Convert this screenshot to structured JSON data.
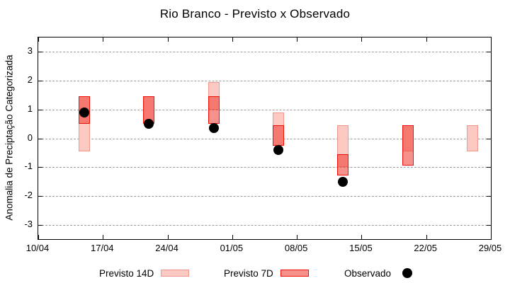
{
  "title": "Rio Branco - Previsto x Observado",
  "chart_data": {
    "type": "bar",
    "subtype": "floating-range-bars-with-scatter",
    "title": "Rio Branco - Previsto x Observado",
    "xlabel": "",
    "ylabel": "Anomalia de Preciptação Categorizada",
    "ylim": [
      -3.5,
      3.5
    ],
    "xlim_days": [
      0,
      49
    ],
    "grid": true,
    "legend_position": "bottom",
    "y_ticks": [
      {
        "value": 3,
        "label": "3"
      },
      {
        "value": 2,
        "label": "2"
      },
      {
        "value": 1,
        "label": "1"
      },
      {
        "value": 0,
        "label": "0"
      },
      {
        "value": -1,
        "label": "-1"
      },
      {
        "value": -2,
        "label": "-2"
      },
      {
        "value": -3,
        "label": "-3"
      }
    ],
    "x_ticks": [
      {
        "day": 0,
        "label": "10/04"
      },
      {
        "day": 7,
        "label": "17/04"
      },
      {
        "day": 14,
        "label": "24/04"
      },
      {
        "day": 21,
        "label": "01/05"
      },
      {
        "day": 28,
        "label": "08/05"
      },
      {
        "day": 35,
        "label": "15/05"
      },
      {
        "day": 42,
        "label": "22/05"
      },
      {
        "day": 49,
        "label": "29/05"
      }
    ],
    "series": [
      {
        "name": "Previsto 14D",
        "type": "range",
        "fill": "#fbc9c1",
        "border": "#f0978b",
        "points": [
          {
            "day": 5,
            "date": "15/04",
            "low": -0.45,
            "high": 1.45
          },
          {
            "day": 12,
            "date": "22/04",
            "low": 0.5,
            "high": 1.45
          },
          {
            "day": 19,
            "date": "29/04",
            "low": 1.0,
            "high": 1.95
          },
          {
            "day": 26,
            "date": "06/05",
            "low": -0.25,
            "high": 0.9
          },
          {
            "day": 33,
            "date": "13/05",
            "low": -1.0,
            "high": 0.45
          },
          {
            "day": 40,
            "date": "20/05",
            "low": -0.45,
            "high": 0.45
          },
          {
            "day": 47,
            "date": "27/05",
            "low": -0.45,
            "high": 0.45
          }
        ]
      },
      {
        "name": "Previsto 7D",
        "type": "range",
        "fill": "rgba(240,55,45,0.55)",
        "border": "#ee1009",
        "points": [
          {
            "day": 5,
            "date": "15/04",
            "low": 0.5,
            "high": 1.45
          },
          {
            "day": 12,
            "date": "22/04",
            "low": 0.5,
            "high": 1.45
          },
          {
            "day": 19,
            "date": "29/04",
            "low": 0.5,
            "high": 1.45
          },
          {
            "day": 26,
            "date": "06/05",
            "low": -0.25,
            "high": 0.45
          },
          {
            "day": 33,
            "date": "13/05",
            "low": -1.3,
            "high": -0.55
          },
          {
            "day": 40,
            "date": "20/05",
            "low": -0.95,
            "high": 0.45
          }
        ]
      },
      {
        "name": "Observado",
        "type": "scatter",
        "color": "#000000",
        "points": [
          {
            "day": 5,
            "date": "15/04",
            "value": 0.9
          },
          {
            "day": 12,
            "date": "22/04",
            "value": 0.5
          },
          {
            "day": 19,
            "date": "29/04",
            "value": 0.35
          },
          {
            "day": 26,
            "date": "06/05",
            "value": -0.4
          },
          {
            "day": 33,
            "date": "13/05",
            "value": -1.5
          }
        ]
      }
    ],
    "colors": {
      "grid": "#9a9a9a",
      "axis": "#000000",
      "previsto_14d_fill": "#fbc9c1",
      "previsto_14d_border": "#f0978b",
      "previsto_7d_border": "#ee1009",
      "observado": "#000000"
    }
  }
}
